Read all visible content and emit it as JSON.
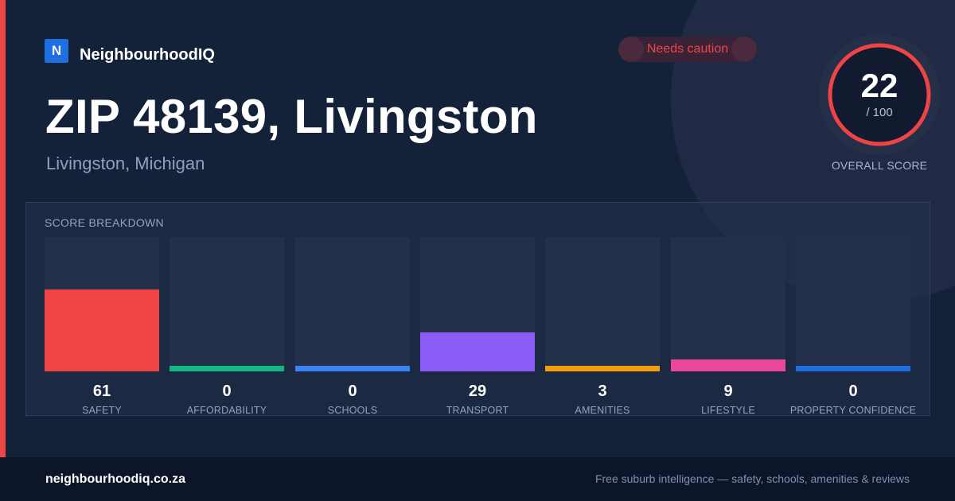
{
  "brand": {
    "logo_letter": "N",
    "name": "NeighbourhoodIQ",
    "logo_color": "#1e6fe0"
  },
  "badge": {
    "label": "Needs caution",
    "color": "#ef4444"
  },
  "header": {
    "title": "ZIP 48139, Livingston",
    "subtitle": "Livingston, Michigan"
  },
  "overall": {
    "score": "22",
    "max": "/ 100",
    "label": "OVERALL SCORE",
    "score_fraction": 0.22,
    "ring_color": "#ef4444"
  },
  "breakdown": {
    "title": "SCORE BREAKDOWN",
    "items": [
      {
        "label": "SAFETY",
        "value": "61",
        "score": 61,
        "color": "#ef4444"
      },
      {
        "label": "AFFORDABILITY",
        "value": "0",
        "score": 0,
        "color": "#10b981"
      },
      {
        "label": "SCHOOLS",
        "value": "0",
        "score": 0,
        "color": "#3b82f6"
      },
      {
        "label": "TRANSPORT",
        "value": "29",
        "score": 29,
        "color": "#8b5cf6"
      },
      {
        "label": "AMENITIES",
        "value": "3",
        "score": 3,
        "color": "#f59e0b"
      },
      {
        "label": "LIFESTYLE",
        "value": "9",
        "score": 9,
        "color": "#ec4899"
      },
      {
        "label": "PROPERTY CONFIDENCE",
        "value": "0",
        "score": 0,
        "color": "#1e6fe0"
      }
    ]
  },
  "footer": {
    "site": "neighbourhoodiq.co.za",
    "tagline": "Free suburb intelligence — safety, schools, amenities & reviews"
  }
}
